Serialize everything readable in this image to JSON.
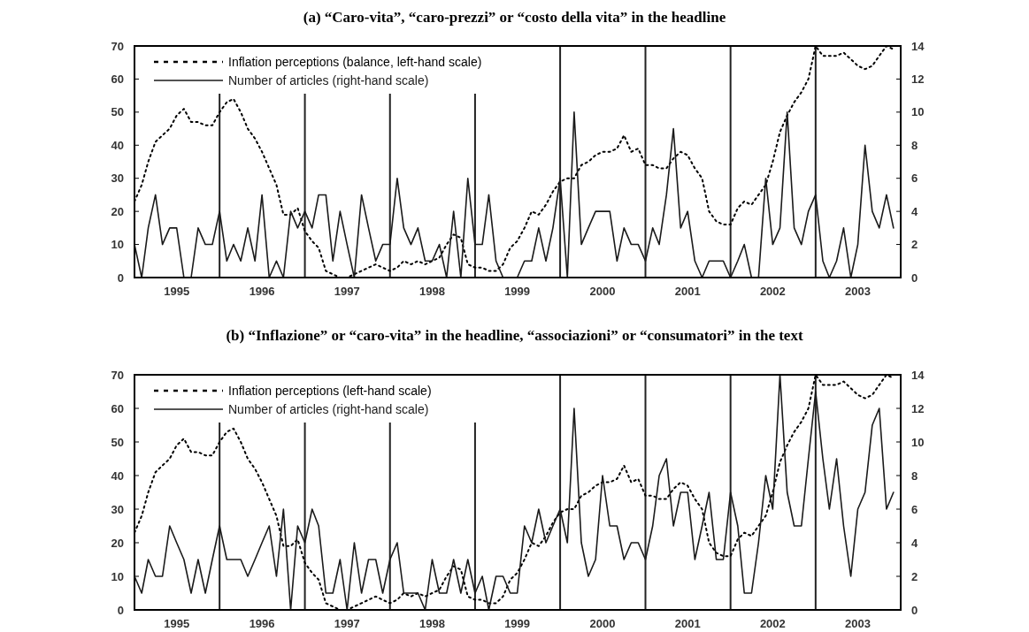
{
  "chart_data": [
    {
      "type": "line",
      "title": "(a) “Caro-vita”, “caro-prezzi” or “costo della vita” in the headline",
      "legend": "top left",
      "xlim": [
        "1995-01",
        "2004-01"
      ],
      "xticks": [
        {
          "value": "1995-07",
          "label": "1995"
        },
        {
          "value": "1996-07",
          "label": "1996"
        },
        {
          "value": "1997-07",
          "label": "1997"
        },
        {
          "value": "1998-07",
          "label": "1998"
        },
        {
          "value": "1999-07",
          "label": "1999"
        },
        {
          "value": "2000-07",
          "label": "2000"
        },
        {
          "value": "2001-07",
          "label": "2001"
        },
        {
          "value": "2002-07",
          "label": "2002"
        },
        {
          "value": "2003-07",
          "label": "2003"
        }
      ],
      "ylim": [
        0,
        70
      ],
      "yticks": [
        0,
        10,
        20,
        30,
        40,
        50,
        60,
        70
      ],
      "y2lim": [
        0,
        14
      ],
      "y2ticks": [
        0,
        2,
        4,
        6,
        8,
        10,
        12,
        14
      ],
      "x": [
        "1995-01",
        "1995-02",
        "1995-03",
        "1995-04",
        "1995-05",
        "1995-06",
        "1995-07",
        "1995-08",
        "1995-09",
        "1995-10",
        "1995-11",
        "1995-12",
        "1996-01",
        "1996-02",
        "1996-03",
        "1996-04",
        "1996-05",
        "1996-06",
        "1996-07",
        "1996-08",
        "1996-09",
        "1996-10",
        "1996-11",
        "1996-12",
        "1997-01",
        "1997-02",
        "1997-03",
        "1997-04",
        "1997-05",
        "1997-06",
        "1997-07",
        "1997-08",
        "1997-09",
        "1997-10",
        "1997-11",
        "1997-12",
        "1998-01",
        "1998-02",
        "1998-03",
        "1998-04",
        "1998-05",
        "1998-06",
        "1998-07",
        "1998-08",
        "1998-09",
        "1998-10",
        "1998-11",
        "1998-12",
        "1999-01",
        "1999-02",
        "1999-03",
        "1999-04",
        "1999-05",
        "1999-06",
        "1999-07",
        "1999-08",
        "1999-09",
        "1999-10",
        "1999-11",
        "1999-12",
        "2000-01",
        "2000-02",
        "2000-03",
        "2000-04",
        "2000-05",
        "2000-06",
        "2000-07",
        "2000-08",
        "2000-09",
        "2000-10",
        "2000-11",
        "2000-12",
        "2001-01",
        "2001-02",
        "2001-03",
        "2001-04",
        "2001-05",
        "2001-06",
        "2001-07",
        "2001-08",
        "2001-09",
        "2001-10",
        "2001-11",
        "2001-12",
        "2002-01",
        "2002-02",
        "2002-03",
        "2002-04",
        "2002-05",
        "2002-06",
        "2002-07",
        "2002-08",
        "2002-09",
        "2002-10",
        "2002-11",
        "2002-12",
        "2003-01",
        "2003-02",
        "2003-03",
        "2003-04",
        "2003-05",
        "2003-06",
        "2003-07",
        "2003-08",
        "2003-09",
        "2003-10",
        "2003-11",
        "2003-12"
      ],
      "series": [
        {
          "name": "Inflation perceptions (balance, left-hand scale)",
          "color": "#000000",
          "line_style": "dotted",
          "values": [
            23,
            28,
            35,
            41,
            43,
            45,
            49,
            51,
            47,
            47,
            46,
            46,
            50,
            53,
            54,
            50,
            45,
            42,
            38,
            33,
            28,
            19,
            19,
            21,
            14,
            11,
            9,
            2,
            1,
            0,
            0,
            1,
            2,
            3,
            4,
            3,
            2,
            3,
            5,
            4,
            5,
            4,
            5,
            6,
            10,
            13,
            12,
            4,
            3,
            3,
            2,
            2,
            4,
            9,
            11,
            15,
            20,
            19,
            22,
            26,
            29,
            30,
            30,
            34,
            35,
            37,
            38,
            38,
            39,
            43,
            38,
            39,
            34,
            34,
            33,
            33,
            36,
            38,
            37,
            33,
            30,
            20,
            17,
            16,
            16,
            21,
            23,
            22,
            25,
            28,
            35,
            44,
            49,
            53,
            56,
            60,
            70,
            67,
            67,
            67,
            68,
            66,
            64,
            63,
            64,
            67,
            70,
            69
          ]
        },
        {
          "name": "Number of articles (right-hand scale)",
          "color": "#1a1a1a",
          "line_style": "solid",
          "axis": "y2",
          "values": [
            2,
            0,
            3,
            5,
            2,
            3,
            3,
            0,
            0,
            3,
            2,
            2,
            4,
            1,
            2,
            1,
            3,
            1,
            5,
            0,
            1,
            0,
            4,
            3,
            4,
            3,
            5,
            5,
            1,
            4,
            2,
            0,
            5,
            3,
            1,
            2,
            2,
            6,
            3,
            2,
            3,
            1,
            1,
            2,
            0,
            4,
            0,
            6,
            2,
            2,
            5,
            1,
            0,
            0,
            0,
            1,
            1,
            3,
            1,
            3,
            6,
            0,
            10,
            2,
            3,
            4,
            4,
            4,
            1,
            3,
            2,
            2,
            1,
            3,
            2,
            5,
            9,
            3,
            4,
            1,
            0,
            1,
            1,
            1,
            0,
            1,
            2,
            0,
            0,
            6,
            2,
            3,
            10,
            3,
            2,
            4,
            5,
            1,
            0,
            1,
            3,
            0,
            2,
            8,
            4,
            3,
            5,
            3
          ]
        }
      ],
      "ref_lines": [
        {
          "axis": "x",
          "value": "1996-01",
          "color": "#222222"
        },
        {
          "axis": "x",
          "value": "1997-01",
          "color": "#222222"
        },
        {
          "axis": "x",
          "value": "1998-01",
          "color": "#222222"
        },
        {
          "axis": "x",
          "value": "1999-01",
          "color": "#222222"
        },
        {
          "axis": "x",
          "value": "2000-01",
          "color": "#222222"
        },
        {
          "axis": "x",
          "value": "2001-01",
          "color": "#222222"
        },
        {
          "axis": "x",
          "value": "2002-01",
          "color": "#222222"
        },
        {
          "axis": "x",
          "value": "2003-01",
          "color": "#222222"
        }
      ]
    },
    {
      "type": "line",
      "title": "(b) “Inflazione” or “caro-vita” in the headline, “associazioni” or “consumatori” in the text",
      "legend": "top left",
      "xlim": [
        "1995-01",
        "2004-01"
      ],
      "xticks": [
        {
          "value": "1995-07",
          "label": "1995"
        },
        {
          "value": "1996-07",
          "label": "1996"
        },
        {
          "value": "1997-07",
          "label": "1997"
        },
        {
          "value": "1998-07",
          "label": "1998"
        },
        {
          "value": "1999-07",
          "label": "1999"
        },
        {
          "value": "2000-07",
          "label": "2000"
        },
        {
          "value": "2001-07",
          "label": "2001"
        },
        {
          "value": "2002-07",
          "label": "2002"
        },
        {
          "value": "2003-07",
          "label": "2003"
        }
      ],
      "ylim": [
        0,
        70
      ],
      "yticks": [
        0,
        10,
        20,
        30,
        40,
        50,
        60,
        70
      ],
      "y2lim": [
        0,
        14
      ],
      "y2ticks": [
        0,
        2,
        4,
        6,
        8,
        10,
        12,
        14
      ],
      "x": [
        "1995-01",
        "1995-02",
        "1995-03",
        "1995-04",
        "1995-05",
        "1995-06",
        "1995-07",
        "1995-08",
        "1995-09",
        "1995-10",
        "1995-11",
        "1995-12",
        "1996-01",
        "1996-02",
        "1996-03",
        "1996-04",
        "1996-05",
        "1996-06",
        "1996-07",
        "1996-08",
        "1996-09",
        "1996-10",
        "1996-11",
        "1996-12",
        "1997-01",
        "1997-02",
        "1997-03",
        "1997-04",
        "1997-05",
        "1997-06",
        "1997-07",
        "1997-08",
        "1997-09",
        "1997-10",
        "1997-11",
        "1997-12",
        "1998-01",
        "1998-02",
        "1998-03",
        "1998-04",
        "1998-05",
        "1998-06",
        "1998-07",
        "1998-08",
        "1998-09",
        "1998-10",
        "1998-11",
        "1998-12",
        "1999-01",
        "1999-02",
        "1999-03",
        "1999-04",
        "1999-05",
        "1999-06",
        "1999-07",
        "1999-08",
        "1999-09",
        "1999-10",
        "1999-11",
        "1999-12",
        "2000-01",
        "2000-02",
        "2000-03",
        "2000-04",
        "2000-05",
        "2000-06",
        "2000-07",
        "2000-08",
        "2000-09",
        "2000-10",
        "2000-11",
        "2000-12",
        "2001-01",
        "2001-02",
        "2001-03",
        "2001-04",
        "2001-05",
        "2001-06",
        "2001-07",
        "2001-08",
        "2001-09",
        "2001-10",
        "2001-11",
        "2001-12",
        "2002-01",
        "2002-02",
        "2002-03",
        "2002-04",
        "2002-05",
        "2002-06",
        "2002-07",
        "2002-08",
        "2002-09",
        "2002-10",
        "2002-11",
        "2002-12",
        "2003-01",
        "2003-02",
        "2003-03",
        "2003-04",
        "2003-05",
        "2003-06",
        "2003-07",
        "2003-08",
        "2003-09",
        "2003-10",
        "2003-11",
        "2003-12"
      ],
      "series": [
        {
          "name": "Inflation perceptions (left-hand scale)",
          "color": "#000000",
          "line_style": "dotted",
          "values": [
            23,
            28,
            35,
            41,
            43,
            45,
            49,
            51,
            47,
            47,
            46,
            46,
            50,
            53,
            54,
            50,
            45,
            42,
            38,
            33,
            28,
            19,
            19,
            21,
            14,
            11,
            9,
            2,
            1,
            0,
            0,
            1,
            2,
            3,
            4,
            3,
            2,
            3,
            5,
            4,
            5,
            4,
            5,
            6,
            10,
            13,
            12,
            4,
            3,
            3,
            2,
            2,
            4,
            9,
            11,
            15,
            20,
            19,
            22,
            26,
            29,
            30,
            30,
            34,
            35,
            37,
            38,
            38,
            39,
            43,
            38,
            39,
            34,
            34,
            33,
            33,
            36,
            38,
            37,
            33,
            30,
            20,
            17,
            16,
            16,
            21,
            23,
            22,
            25,
            28,
            35,
            44,
            49,
            53,
            56,
            60,
            70,
            67,
            67,
            67,
            68,
            66,
            64,
            63,
            64,
            67,
            70,
            69
          ]
        },
        {
          "name": "Number of articles (right-hand scale)",
          "color": "#1a1a1a",
          "line_style": "solid",
          "axis": "y2",
          "values": [
            2,
            1,
            3,
            2,
            2,
            5,
            4,
            3,
            1,
            3,
            1,
            3,
            5,
            3,
            3,
            3,
            2,
            3,
            4,
            5,
            2,
            6,
            0,
            5,
            4,
            6,
            5,
            1,
            1,
            3,
            0,
            4,
            1,
            3,
            3,
            1,
            3,
            4,
            1,
            1,
            1,
            0,
            3,
            1,
            1,
            3,
            1,
            3,
            1,
            2,
            0,
            2,
            2,
            1,
            1,
            5,
            4,
            6,
            4,
            5,
            6,
            4,
            12,
            4,
            2,
            3,
            8,
            5,
            5,
            3,
            4,
            4,
            3,
            5,
            8,
            9,
            5,
            7,
            7,
            3,
            5,
            7,
            3,
            3,
            7,
            5,
            1,
            1,
            4,
            8,
            6,
            14,
            7,
            5,
            5,
            9,
            13,
            9,
            6,
            9,
            5,
            2,
            6,
            7,
            11,
            12,
            6,
            7
          ]
        }
      ],
      "ref_lines": [
        {
          "axis": "x",
          "value": "1996-01",
          "color": "#222222"
        },
        {
          "axis": "x",
          "value": "1997-01",
          "color": "#222222"
        },
        {
          "axis": "x",
          "value": "1998-01",
          "color": "#222222"
        },
        {
          "axis": "x",
          "value": "1999-01",
          "color": "#222222"
        },
        {
          "axis": "x",
          "value": "2000-01",
          "color": "#222222"
        },
        {
          "axis": "x",
          "value": "2001-01",
          "color": "#222222"
        },
        {
          "axis": "x",
          "value": "2002-01",
          "color": "#222222"
        },
        {
          "axis": "x",
          "value": "2003-01",
          "color": "#222222"
        }
      ]
    }
  ]
}
